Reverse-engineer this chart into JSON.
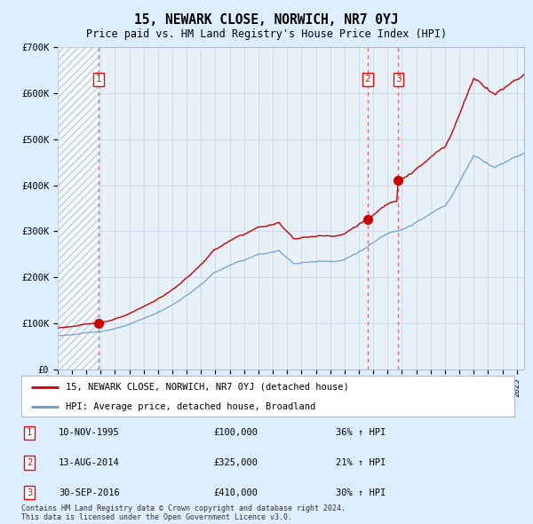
{
  "title": "15, NEWARK CLOSE, NORWICH, NR7 0YJ",
  "subtitle": "Price paid vs. HM Land Registry's House Price Index (HPI)",
  "legend_red": "15, NEWARK CLOSE, NORWICH, NR7 0YJ (detached house)",
  "legend_blue": "HPI: Average price, detached house, Broadland",
  "footer1": "Contains HM Land Registry data © Crown copyright and database right 2024.",
  "footer2": "This data is licensed under the Open Government Licence v3.0.",
  "transactions": [
    {
      "num": 1,
      "date": "10-NOV-1995",
      "price": 100000,
      "pct": "36%",
      "dir": "↑",
      "year": 1995.87
    },
    {
      "num": 2,
      "date": "13-AUG-2014",
      "price": 325000,
      "pct": "21%",
      "dir": "↑",
      "year": 2014.62
    },
    {
      "num": 3,
      "date": "30-SEP-2016",
      "price": 410000,
      "pct": "30%",
      "dir": "↑",
      "year": 2016.75
    }
  ],
  "ylim": [
    0,
    700000
  ],
  "yticks": [
    0,
    100000,
    200000,
    300000,
    400000,
    500000,
    600000,
    700000
  ],
  "ytick_labels": [
    "£0",
    "£100K",
    "£200K",
    "£300K",
    "£400K",
    "£500K",
    "£600K",
    "£700K"
  ],
  "xlim_start": 1993.0,
  "xlim_end": 2025.5,
  "hatch_end_year": 1995.87,
  "red_color": "#cc0000",
  "blue_color": "#6699cc",
  "dashed_color": "#ee5555",
  "grid_color": "#c8d8e8",
  "bg_color": "#ddeeff",
  "plot_bg": "#e8f0f8",
  "hatch_color": "#aabbcc",
  "hatch_bg": "#c8d8e8"
}
